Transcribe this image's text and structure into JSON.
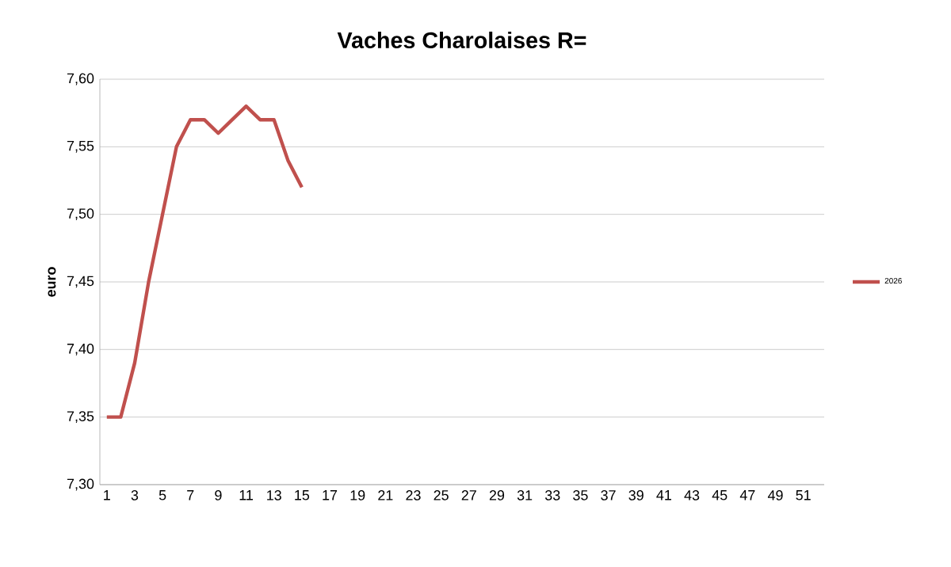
{
  "chart_data": {
    "type": "line",
    "title": "Vaches Charolaises R=",
    "ylabel": "euro",
    "categories": [
      "1",
      null,
      "3",
      null,
      "5",
      null,
      "7",
      null,
      "9",
      null,
      "11",
      null,
      "13",
      null,
      "15",
      null,
      "17",
      null,
      "19",
      null,
      "21",
      null,
      "23",
      null,
      "25",
      null,
      "27",
      null,
      "29",
      null,
      "31",
      null,
      "33",
      null,
      "35",
      null,
      "37",
      null,
      "39",
      null,
      "41",
      null,
      "43",
      null,
      "45",
      null,
      "47",
      null,
      "49",
      null,
      "51",
      null
    ],
    "series": [
      {
        "name": "2026",
        "color": "#c0504d",
        "values": [
          7.35,
          7.35,
          7.39,
          7.45,
          7.5,
          7.55,
          7.57,
          7.57,
          7.56,
          7.57,
          7.58,
          7.57,
          7.57,
          7.54,
          7.52,
          null,
          null,
          null,
          null,
          null,
          null,
          null,
          null,
          null,
          null,
          null,
          null,
          null,
          null,
          null,
          null,
          null,
          null,
          null,
          null,
          null,
          null,
          null,
          null,
          null,
          null,
          null,
          null,
          null,
          null,
          null,
          null,
          null,
          null,
          null,
          null,
          null
        ]
      }
    ],
    "ylim": [
      7.3,
      7.6
    ],
    "yticks": [
      {
        "value": 7.3,
        "label": "7,30"
      },
      {
        "value": 7.35,
        "label": "7,35"
      },
      {
        "value": 7.4,
        "label": "7,40"
      },
      {
        "value": 7.45,
        "label": "7,45"
      },
      {
        "value": 7.5,
        "label": "7,50"
      },
      {
        "value": 7.55,
        "label": "7,55"
      },
      {
        "value": 7.6,
        "label": "7,60"
      }
    ],
    "grid": "y",
    "legend": "right",
    "marker": "none",
    "line_style": "solid"
  }
}
